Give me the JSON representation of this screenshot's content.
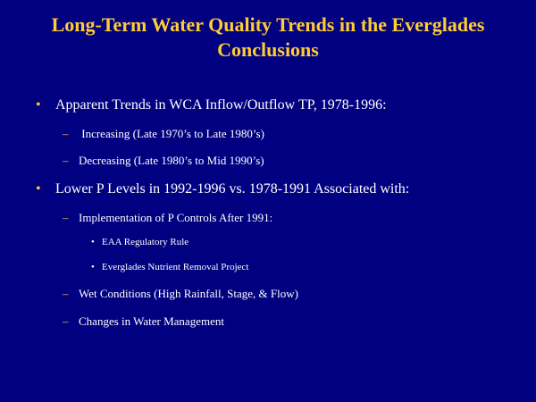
{
  "slide": {
    "background_color": "#000080",
    "accent_color": "#ffcc33",
    "title_line1": "Long-Term Water Quality Trends in the Everglades",
    "title_line2": "Conclusions",
    "items": [
      {
        "bullet": "•",
        "text": "Apparent Trends in WCA  Inflow/Outflow TP, 1978-1996:",
        "subitems": [
          {
            "marker": "–",
            "text": " Increasing  (Late 1970’s  to  Late 1980’s)"
          },
          {
            "marker": "–",
            "text": "Decreasing (Late 1980’s to  Mid 1990’s)"
          }
        ]
      },
      {
        "bullet": "•",
        "text": "Lower P Levels in 1992-1996 vs. 1978-1991 Associated with:",
        "subitems": [
          {
            "marker": "–",
            "text": "Implementation of P Controls After 1991:",
            "subitems": [
              {
                "marker": "•",
                "text": "EAA Regulatory Rule"
              },
              {
                "marker": "•",
                "text": "Everglades Nutrient Removal Project"
              }
            ]
          },
          {
            "marker": "–",
            "text": "Wet Conditions (High Rainfall, Stage, & Flow)"
          },
          {
            "marker": "–",
            "text": "Changes in Water Management"
          }
        ]
      }
    ]
  }
}
